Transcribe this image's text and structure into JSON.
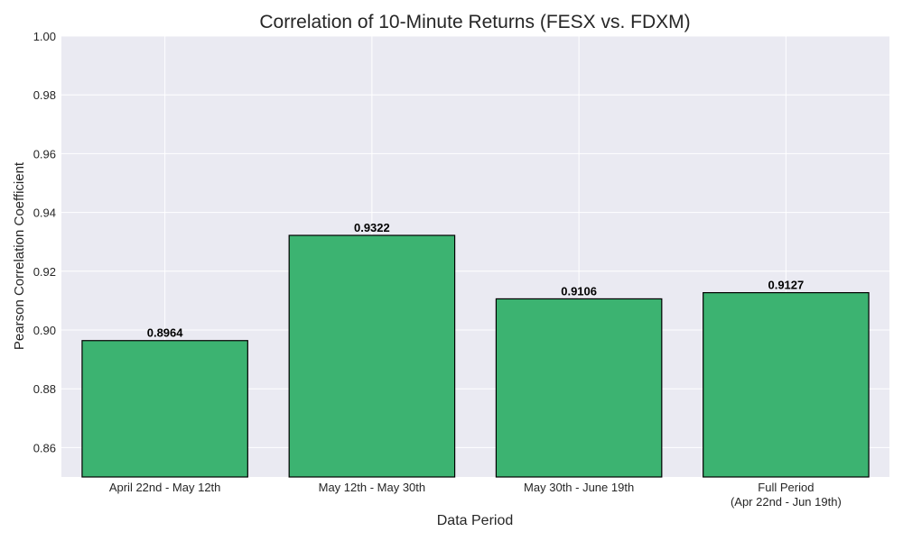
{
  "chart_data": {
    "type": "bar",
    "title": "Correlation of 10-Minute Returns (FESX vs. FDXM)",
    "xlabel": "Data Period",
    "ylabel": "Pearson Correlation Coefficient",
    "categories": [
      [
        "April 22nd - May 12th"
      ],
      [
        "May 12th - May 30th"
      ],
      [
        "May 30th - June 19th"
      ],
      [
        "Full Period",
        "(Apr 22nd - Jun 19th)"
      ]
    ],
    "values": [
      0.8964,
      0.9322,
      0.9106,
      0.9127
    ],
    "value_labels": [
      "0.8964",
      "0.9322",
      "0.9106",
      "0.9127"
    ],
    "ylim": [
      0.85,
      1.0
    ],
    "yticks": [
      0.86,
      0.88,
      0.9,
      0.92,
      0.94,
      0.96,
      0.98,
      1.0
    ],
    "ytick_labels": [
      "0.86",
      "0.88",
      "0.90",
      "0.92",
      "0.94",
      "0.96",
      "0.98",
      "1.00"
    ],
    "grid": true,
    "colors": {
      "bar_fill": "#3cb371",
      "bar_edge": "#000000",
      "plot_background": "#eaeaf2",
      "grid": "#ffffff",
      "text": "#262626"
    }
  }
}
